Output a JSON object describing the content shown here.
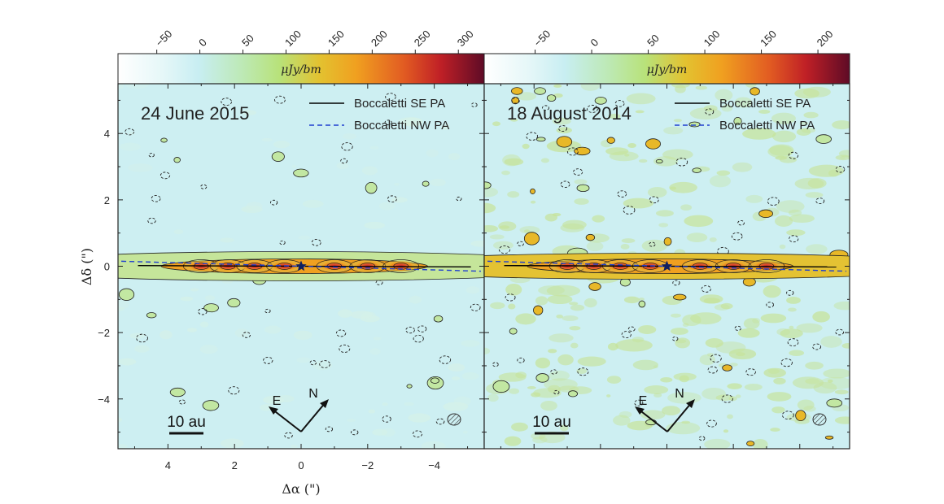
{
  "colors": {
    "background": "#cdeff2",
    "disk_mid": "#f0a020",
    "disk_peak": "#b0202a",
    "se_line": "#000000",
    "nw_line": "#1f3fd0",
    "star": "#102060"
  },
  "panels": [
    {
      "title": "24 June 2015",
      "unit": "μJy/bm",
      "colorbar_ticks": [
        "−50",
        "0",
        "50",
        "100",
        "150",
        "200",
        "250",
        "300"
      ],
      "colorbar_values": [
        -50,
        0,
        50,
        100,
        150,
        200,
        250,
        300
      ],
      "colorbar_range": [
        -95,
        330
      ],
      "legend": {
        "solid": "Boccaletti SE PA",
        "dashed": "Boccaletti NW PA"
      },
      "scale_bar": "10 au",
      "compass": {
        "east": "E",
        "north": "N"
      },
      "beam_icon": "hatched-ellipse",
      "noise_level": "low"
    },
    {
      "title": "18 August 2014",
      "unit": "μJy/bm",
      "colorbar_ticks": [
        "−50",
        "0",
        "50",
        "100",
        "150",
        "200"
      ],
      "colorbar_values": [
        -50,
        0,
        50,
        100,
        150,
        200
      ],
      "colorbar_range": [
        -95,
        228
      ],
      "legend": {
        "solid": "Boccaletti SE PA",
        "dashed": "Boccaletti NW PA"
      },
      "scale_bar": "10 au",
      "compass": {
        "east": "E",
        "north": "N"
      },
      "beam_icon": "hatched-ellipse",
      "noise_level": "high"
    }
  ],
  "axes": {
    "xlabel": "Δα (\")",
    "ylabel": "Δδ (\")",
    "xlim": [
      5.5,
      -5.5
    ],
    "ylim": [
      -5.5,
      5.5
    ],
    "x_ticks": [
      "4",
      "2",
      "0",
      "−2",
      "−4"
    ],
    "x_tick_values": [
      4,
      2,
      0,
      -2,
      -4
    ],
    "y_ticks": [
      "4",
      "2",
      "0",
      "−2",
      "−4"
    ],
    "y_tick_values": [
      4,
      2,
      0,
      -2,
      -4
    ]
  }
}
